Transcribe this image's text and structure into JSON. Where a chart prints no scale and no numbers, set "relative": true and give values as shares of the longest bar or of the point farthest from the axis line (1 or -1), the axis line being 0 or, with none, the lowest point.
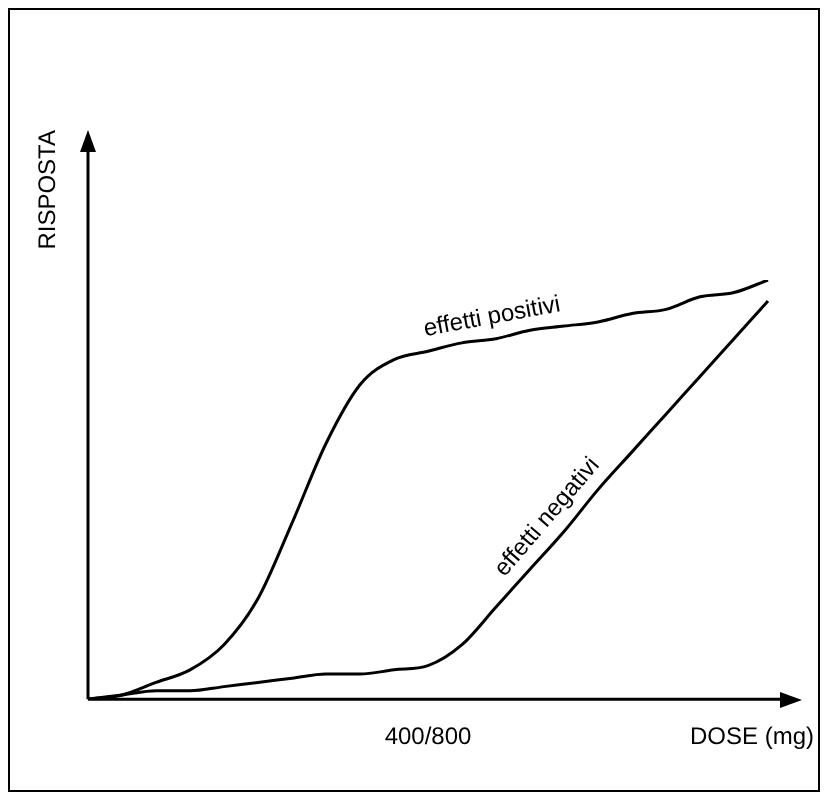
{
  "chart_data": {
    "type": "line",
    "relative": true,
    "xlabel": "DOSE (mg)",
    "ylabel": "RISPOSTA",
    "grid": false,
    "legend": false,
    "marker": "none",
    "line_style": "solid",
    "annotations": [
      "400/800"
    ],
    "categories": [
      null,
      null,
      null,
      null,
      null,
      null,
      null,
      null,
      null,
      null,
      null,
      null,
      null,
      null,
      null,
      null,
      null,
      null,
      null,
      null,
      null
    ],
    "series": [
      {
        "name": "effetti positivi",
        "color": "#000000",
        "values": [
          0,
          0.01,
          0.04,
          0.07,
          0.13,
          0.24,
          0.42,
          0.61,
          0.75,
          0.81,
          0.83,
          0.85,
          0.86,
          0.88,
          0.89,
          0.9,
          0.92,
          0.93,
          0.96,
          0.97,
          1
        ]
      },
      {
        "name": "effetti negativi",
        "color": "#000000",
        "values": [
          0,
          0.01,
          0.02,
          0.02,
          0.03,
          0.04,
          0.05,
          0.06,
          0.06,
          0.07,
          0.08,
          0.13,
          0.22,
          0.31,
          0.4,
          0.5,
          0.59,
          0.68,
          0.77,
          0.86,
          0.95
        ]
      }
    ]
  }
}
